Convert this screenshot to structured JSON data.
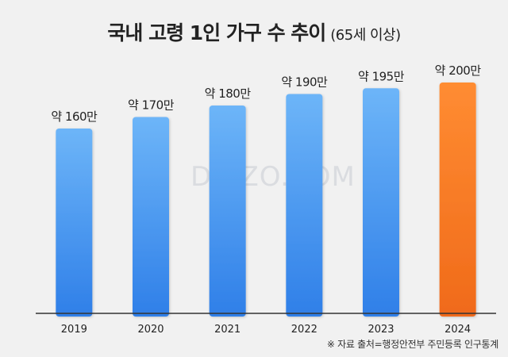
{
  "title": {
    "main": "국내 고령 1인 가구 수 추이",
    "sub": "(65세 이상)"
  },
  "watermark": "DIZZO.COM",
  "source": "※ 자료 출처=행정안전부 주민등록 인구통계",
  "colors": {
    "bar": "#3d8ff0",
    "bar_highlight": "#f5751f",
    "axis": "#333333"
  },
  "chart_data": {
    "type": "bar",
    "title": "국내 고령 1인 가구 수 추이 (65세 이상)",
    "xlabel": "",
    "ylabel": "",
    "categories": [
      "2019",
      "2020",
      "2021",
      "2022",
      "2023",
      "2024"
    ],
    "values": [
      160,
      170,
      180,
      190,
      195,
      200
    ],
    "data_labels": [
      "약 160만",
      "약 170만",
      "약 180만",
      "약 190만",
      "약 195만",
      "약 200만"
    ],
    "highlight_index": 5,
    "grid": false,
    "unit": "만"
  }
}
